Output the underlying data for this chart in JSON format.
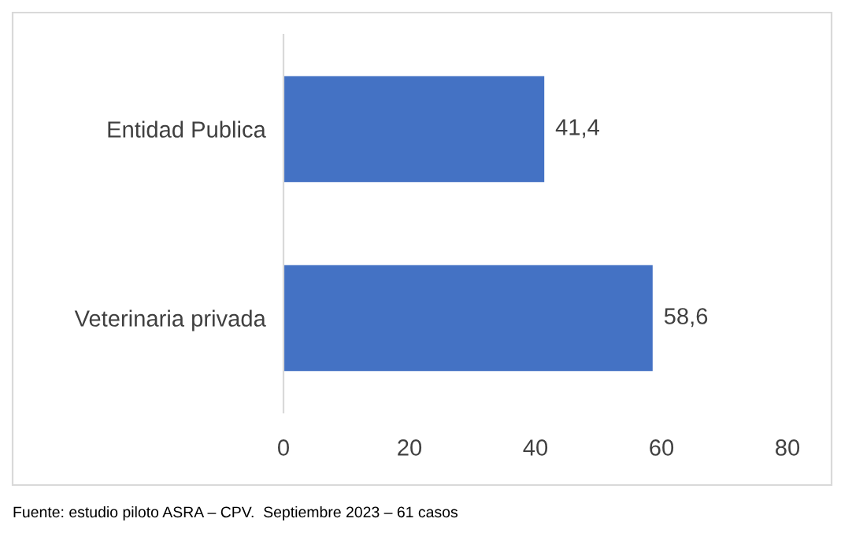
{
  "chart_data": {
    "type": "bar",
    "orientation": "horizontal",
    "categories": [
      "Entidad Publica",
      "Veterinaria privada"
    ],
    "values": [
      41.4,
      58.6
    ],
    "value_labels": [
      "41,4",
      "58,6"
    ],
    "color": "#4472c4",
    "xlim": [
      0,
      80
    ],
    "xticks": [
      0,
      20,
      40,
      60,
      80
    ],
    "grid": false,
    "legend": false,
    "annotations": [
      "Fuente: estudio piloto ASRA – CPV.  Septiembre 2023 – 61 casos"
    ]
  }
}
